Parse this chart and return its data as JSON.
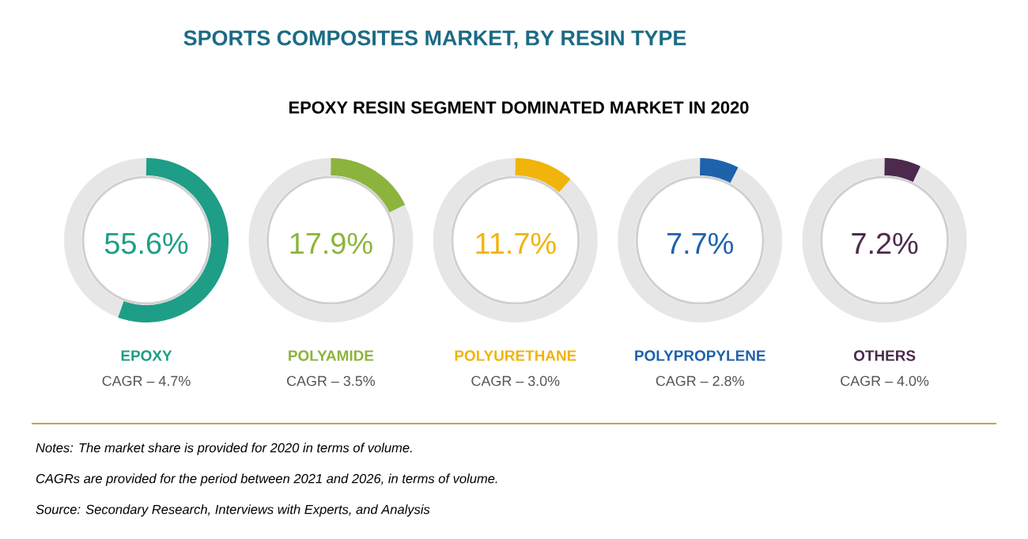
{
  "chart_data": {
    "type": "other",
    "title": "SPORTS COMPOSITES MARKET, BY RESIN TYPE",
    "subtitle": "EPOXY RESIN SEGMENT DOMINATED MARKET IN 2020",
    "categories": [
      "EPOXY",
      "POLYAMIDE",
      "POLYURETHANE",
      "POLYPROPYLENE",
      "OTHERS"
    ],
    "values": [
      55.6,
      17.9,
      11.7,
      7.7,
      7.2
    ],
    "value_labels": [
      "55.6%",
      "17.9%",
      "11.7%",
      "7.7%",
      "7.2%"
    ],
    "colors": [
      "#1e9e86",
      "#8cb43c",
      "#f0b40a",
      "#1f62ac",
      "#4b2a4d"
    ],
    "annotations": [
      {
        "text": "CAGR – 4.7%",
        "x": "EPOXY"
      },
      {
        "text": "CAGR – 3.5%",
        "x": "POLYAMIDE"
      },
      {
        "text": "CAGR – 3.0%",
        "x": "POLYURETHANE"
      },
      {
        "text": "CAGR – 2.8%",
        "x": "POLYPROPYLENE"
      },
      {
        "text": "CAGR – 4.0%",
        "x": "OTHERS"
      },
      "Notes: The market share is provided for 2020 in terms of volume.",
      "CAGRs are provided for the period between 2021 and 2026, in terms of volume.",
      "Source: Secondary Research, Interviews with Experts, and Analysis"
    ]
  }
}
